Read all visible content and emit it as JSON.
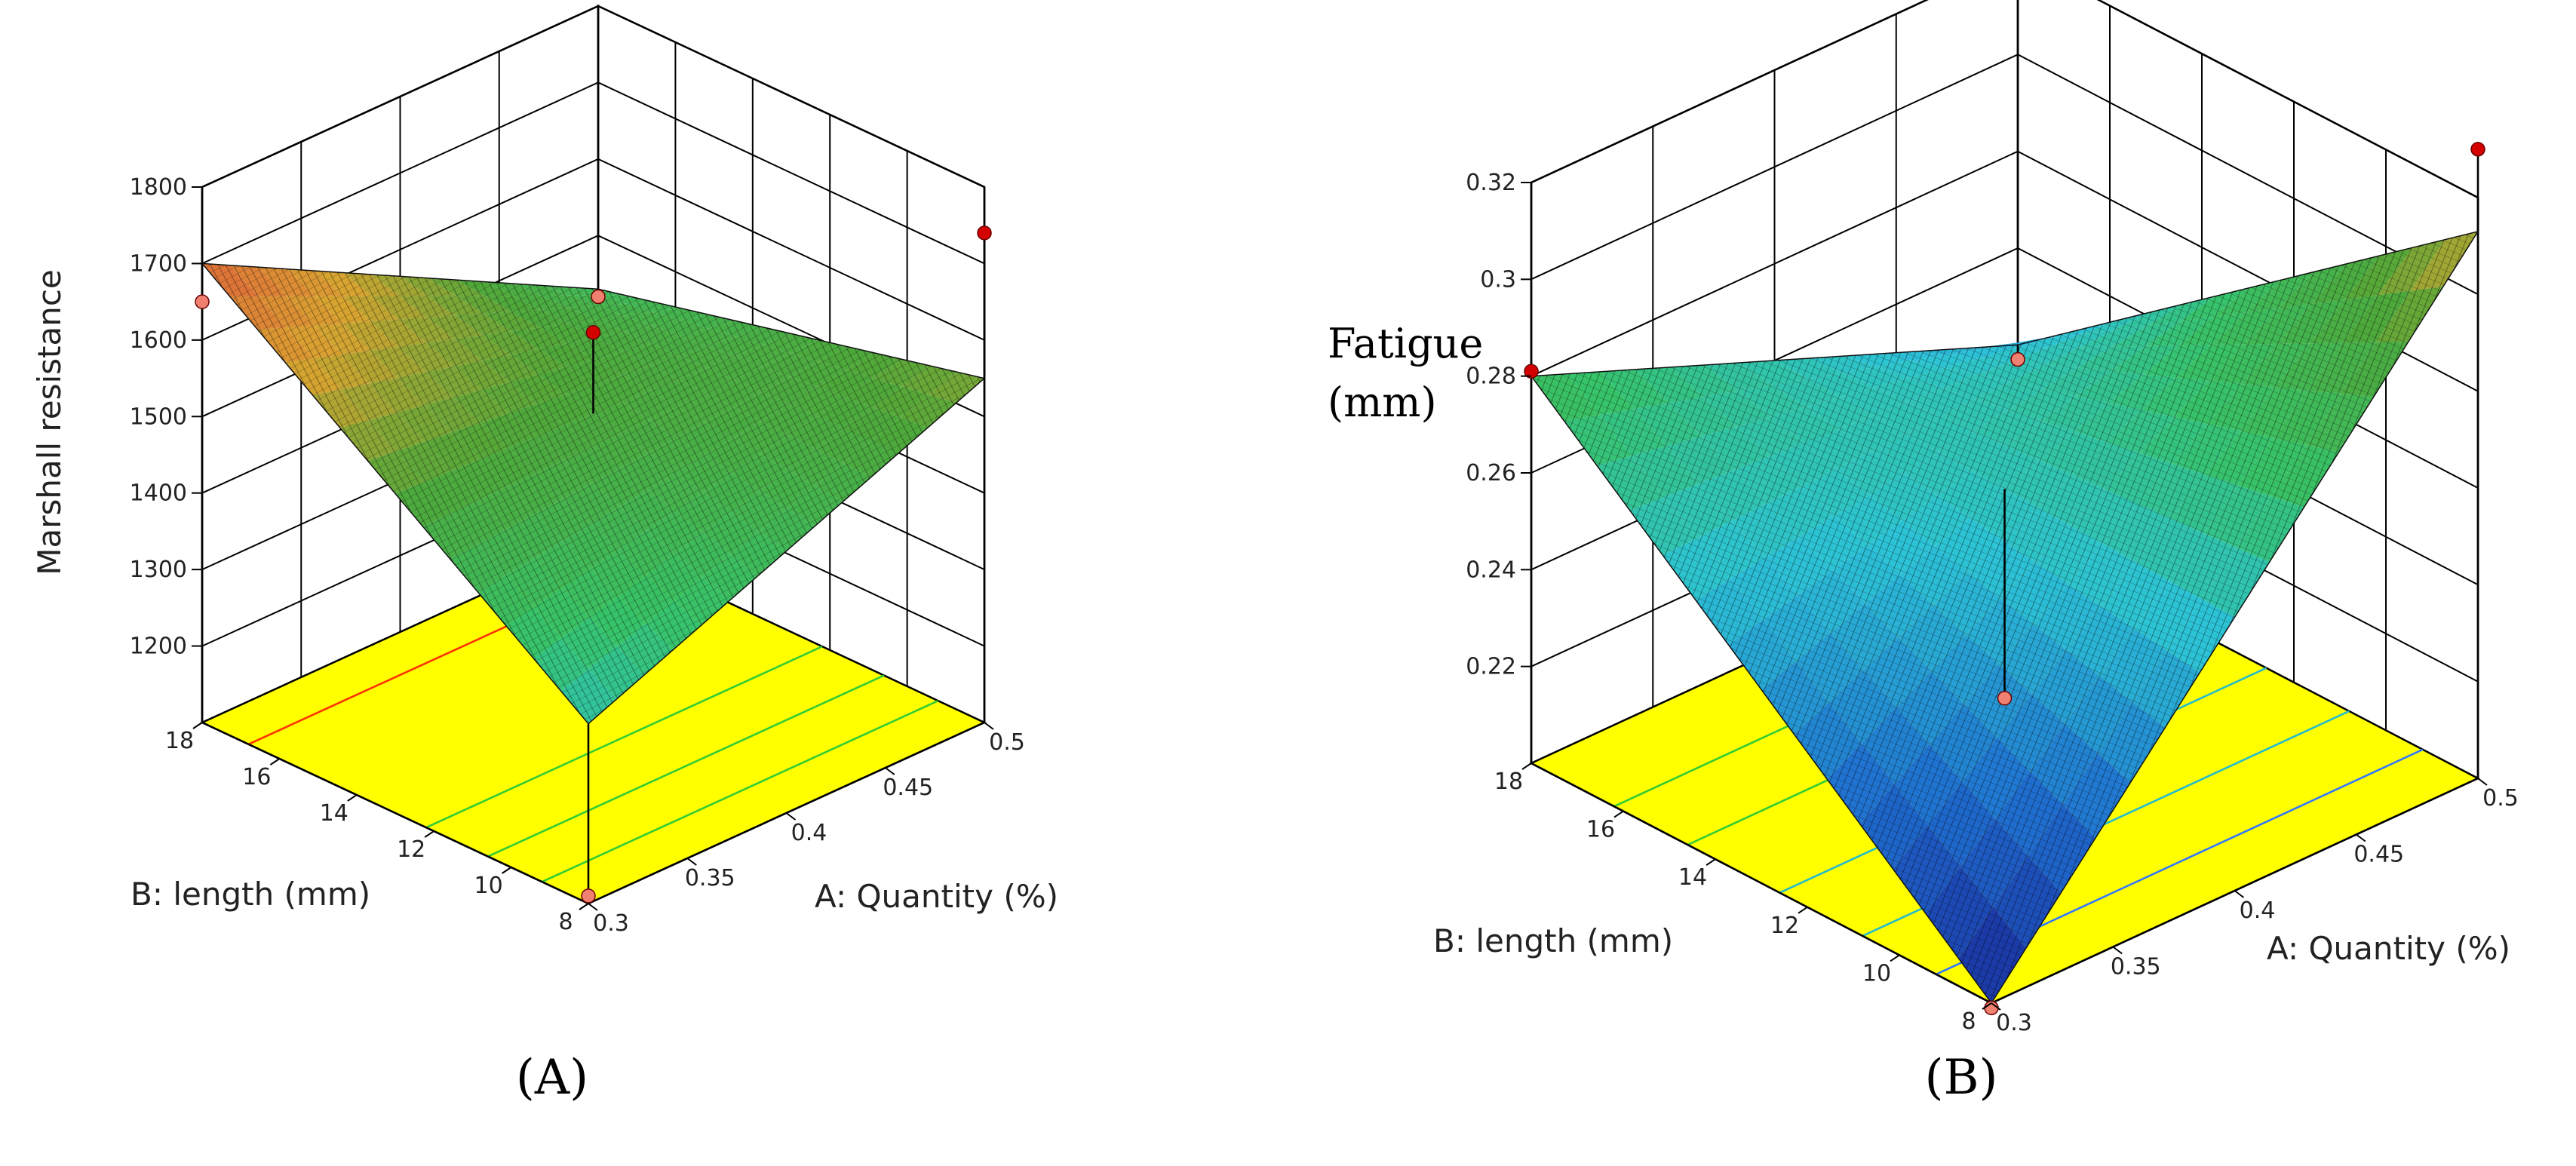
{
  "figure": {
    "panel_labels": [
      "(A)",
      "(B)"
    ]
  },
  "colors": {
    "floor": "#ffff00",
    "point": "#d40000",
    "point_floor": "#f08070",
    "contour_red": "#ff3300",
    "contour_green": "#33cc33",
    "contour_cyan": "#22bbcc",
    "contour_blue": "#3377ff"
  },
  "chart_data": [
    {
      "type": "surface3d",
      "panel": "(A)",
      "zlabel": "Marshall resistance",
      "xlabel": "A: Quantity (%)",
      "ylabel": "B: length (mm)",
      "x_ticks": [
        "0.3",
        "0.35",
        "0.4",
        "0.45",
        "0.5"
      ],
      "y_ticks": [
        "8",
        "10",
        "12",
        "14",
        "16",
        "18"
      ],
      "z_ticks": [
        "1200",
        "1300",
        "1400",
        "1500",
        "1600",
        "1700",
        "1800"
      ],
      "xlim": [
        0.3,
        0.5
      ],
      "ylim": [
        8,
        18
      ],
      "zlim": [
        1100,
        1800
      ],
      "surface_corners": [
        {
          "x": 0.3,
          "y": 8,
          "z": 1335
        },
        {
          "x": 0.5,
          "y": 8,
          "z": 1550
        },
        {
          "x": 0.5,
          "y": 18,
          "z": 1430
        },
        {
          "x": 0.3,
          "y": 18,
          "z": 1700
        }
      ],
      "design_points": [
        {
          "x": 0.3,
          "y": 18,
          "z": 1650
        },
        {
          "x": 0.4,
          "y": 13,
          "z": 1610
        },
        {
          "x": 0.5,
          "y": 8,
          "z": 1740
        },
        {
          "x": 0.5,
          "y": 18,
          "z": 1420
        },
        {
          "x": 0.3,
          "y": 8,
          "z": 1110
        }
      ],
      "contours": [
        {
          "t": 0.88,
          "color": "contour_red"
        },
        {
          "t": 0.42,
          "color": "contour_green"
        },
        {
          "t": 0.26,
          "color": "contour_green"
        },
        {
          "t": 0.12,
          "color": "contour_green"
        }
      ]
    },
    {
      "type": "surface3d",
      "panel": "(B)",
      "zlabel_lines": [
        "Fatigue",
        "(mm)"
      ],
      "xlabel": "A: Quantity (%)",
      "ylabel": "B: length (mm)",
      "x_ticks": [
        "0.3",
        "0.35",
        "0.4",
        "0.45",
        "0.5"
      ],
      "y_ticks": [
        "8",
        "10",
        "12",
        "14",
        "16",
        "18"
      ],
      "z_ticks": [
        "0.22",
        "0.24",
        "0.26",
        "0.28",
        "0.3",
        "0.32"
      ],
      "xlim": [
        0.3,
        0.5
      ],
      "ylim": [
        8,
        18
      ],
      "zlim": [
        0.2,
        0.32
      ],
      "surface_corners": [
        {
          "x": 0.3,
          "y": 8,
          "z": 0.2
        },
        {
          "x": 0.5,
          "y": 8,
          "z": 0.313
        },
        {
          "x": 0.5,
          "y": 18,
          "z": 0.24
        },
        {
          "x": 0.3,
          "y": 18,
          "z": 0.28
        }
      ],
      "design_points": [
        {
          "x": 0.3,
          "y": 18,
          "z": 0.281
        },
        {
          "x": 0.5,
          "y": 8,
          "z": 0.33
        },
        {
          "x": 0.5,
          "y": 18,
          "z": 0.237
        },
        {
          "x": 0.4,
          "y": 13,
          "z": 0.215
        },
        {
          "x": 0.3,
          "y": 8,
          "z": 0.199
        }
      ],
      "contours": [
        {
          "t": 0.82,
          "color": "contour_green"
        },
        {
          "t": 0.66,
          "color": "contour_green"
        },
        {
          "t": 0.46,
          "color": "contour_cyan"
        },
        {
          "t": 0.28,
          "color": "contour_cyan"
        },
        {
          "t": 0.12,
          "color": "contour_blue"
        }
      ]
    }
  ]
}
